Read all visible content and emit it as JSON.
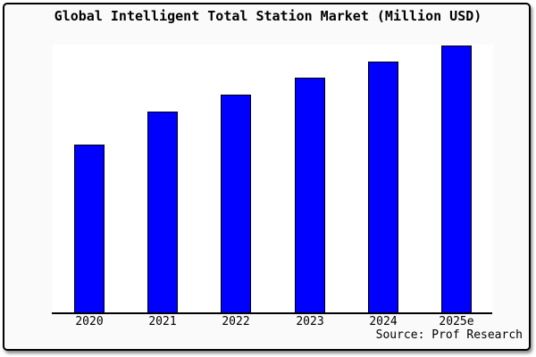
{
  "chart": {
    "title": "Global Intelligent Total Station Market (Million USD)",
    "source": "Source: Prof Research"
  },
  "chart_data": {
    "type": "bar",
    "title": "Global Intelligent Total Station Market (Million USD)",
    "categories": [
      "2020",
      "2021",
      "2022",
      "2023",
      "2024",
      "2025e"
    ],
    "values": [
      63,
      75.3,
      81.7,
      88,
      94,
      100
    ],
    "xlabel": "",
    "ylabel": "",
    "ylim": [
      0,
      100
    ],
    "y_axis_visible": false,
    "gridlines": false,
    "legend_position": "none",
    "values_estimated_relative_to_tallest_bar": true,
    "annotations": [
      "Source: Prof Research"
    ]
  },
  "colors": {
    "bar_fill": "#0000FF",
    "bar_border": "#000000",
    "plot_background": "#FFFFFF",
    "frame_background": "#FAFAFA",
    "frame_border": "#000000",
    "text": "#000000"
  }
}
